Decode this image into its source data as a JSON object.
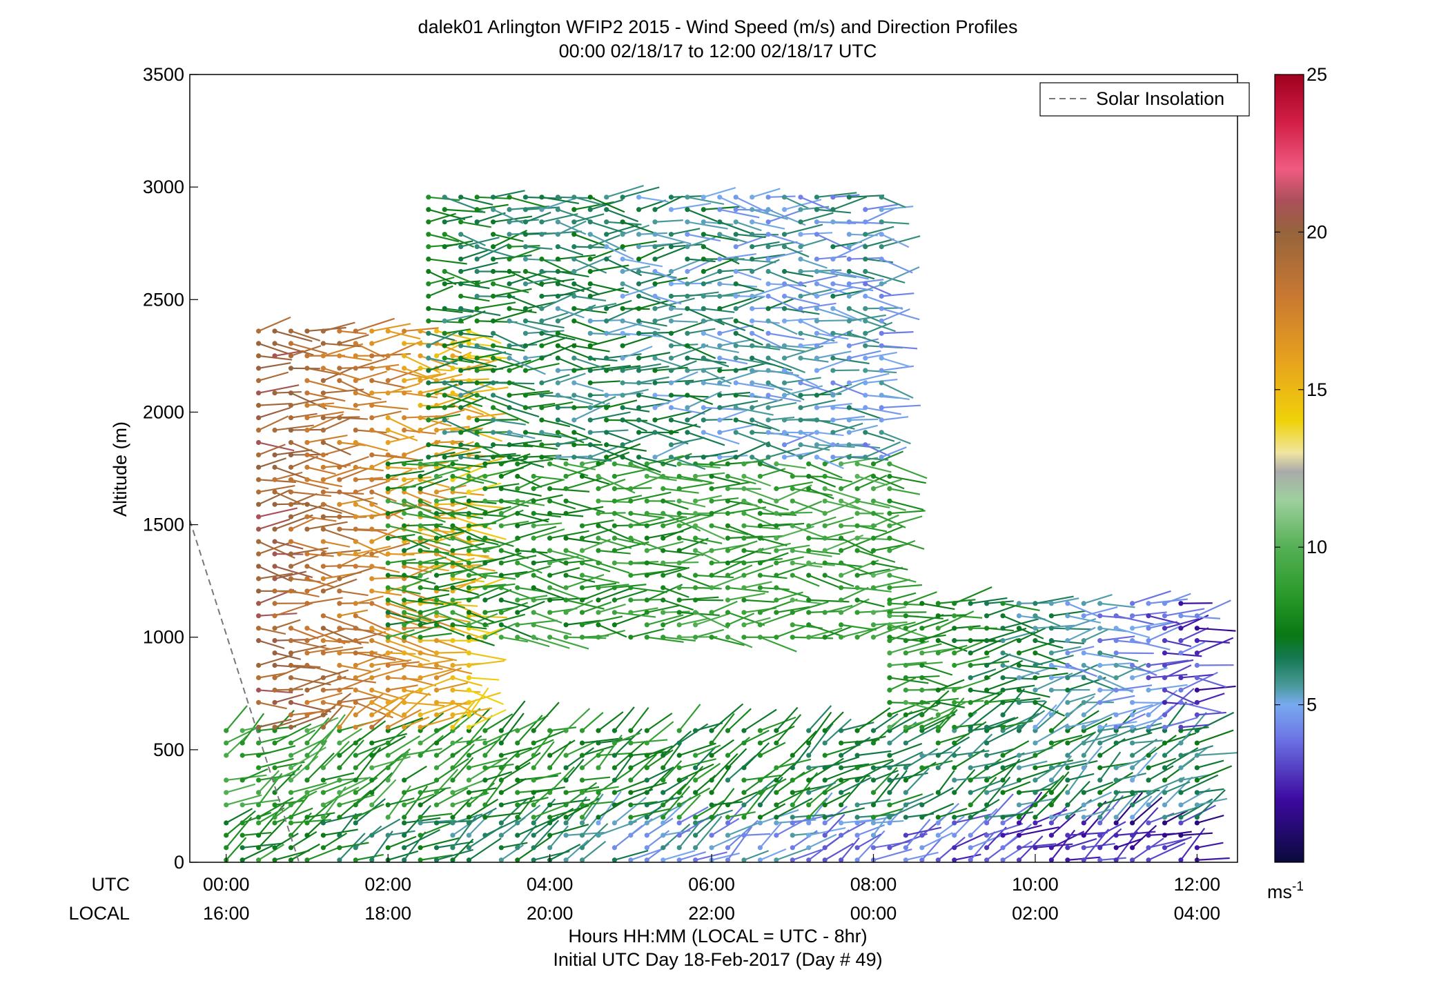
{
  "chart_data": {
    "type": "wind-barb-profile",
    "title": "dalek01 Arlington WFIP2 2015 - Wind Speed (m/s) and Direction Profiles",
    "subtitle": "00:00 02/18/17 to 12:00 02/18/17  UTC",
    "ylabel": "Altitude (m)",
    "xlabel": "Hours HH:MM  (LOCAL = UTC - 8hr)",
    "xlabel2": "Initial UTC Day 18-Feb-2017 (Day # 49)",
    "ylim": [
      0,
      3500
    ],
    "yticks": [
      0,
      500,
      1000,
      1500,
      2000,
      2500,
      3000,
      3500
    ],
    "xlim_hours": [
      -0.45,
      12.5
    ],
    "utc_row_label": "UTC",
    "local_row_label": "LOCAL",
    "xticks": [
      {
        "hour": 0,
        "utc": "00:00",
        "local": "16:00"
      },
      {
        "hour": 2,
        "utc": "02:00",
        "local": "18:00"
      },
      {
        "hour": 4,
        "utc": "04:00",
        "local": "20:00"
      },
      {
        "hour": 6,
        "utc": "06:00",
        "local": "22:00"
      },
      {
        "hour": 8,
        "utc": "08:00",
        "local": "00:00"
      },
      {
        "hour": 10,
        "utc": "10:00",
        "local": "02:00"
      },
      {
        "hour": 12,
        "utc": "12:00",
        "local": "04:00"
      }
    ],
    "colorbar": {
      "range": [
        0,
        25
      ],
      "ticks": [
        5,
        10,
        15,
        20,
        25
      ],
      "unit_base": "ms",
      "unit_exp": "-1"
    },
    "legend": {
      "label": "Solar Insolation",
      "placement": "top-right"
    },
    "solar_insolation": {
      "hours": [
        -0.45,
        0.9
      ],
      "altitude": [
        1520,
        0
      ]
    },
    "profiles": {
      "time_step_hours": 0.2,
      "note_hours": [
        0,
        12
      ],
      "layers": [
        {
          "hours": [
            0,
            12
          ],
          "alt": [
            10,
            200
          ],
          "speed_start": 8,
          "speed_end": 2
        },
        {
          "hours": [
            0,
            12
          ],
          "alt": [
            200,
            600
          ],
          "speed_start": 9,
          "speed_end": 6
        },
        {
          "hours": [
            0.4,
            3.0
          ],
          "alt": [
            600,
            2400
          ],
          "speed_start": 20,
          "speed_end": 15
        },
        {
          "hours": [
            2.0,
            8.2
          ],
          "alt": [
            1000,
            1800
          ],
          "speed_start": 8,
          "speed_end": 9
        },
        {
          "hours": [
            2.5,
            8.2
          ],
          "alt": [
            1800,
            3000
          ],
          "speed_start": 7,
          "speed_end": 5
        },
        {
          "hours": [
            8.2,
            12
          ],
          "alt": [
            600,
            1200
          ],
          "speed_start": 9,
          "speed_end": 3
        }
      ]
    }
  }
}
